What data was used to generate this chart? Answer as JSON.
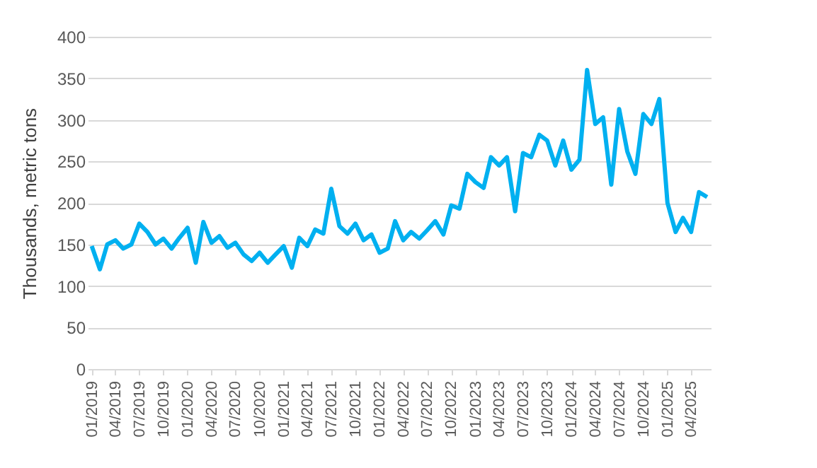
{
  "chart_data": {
    "type": "line",
    "ylabel": "Thousands, metric tons",
    "x": [
      "2019-01",
      "2019-02",
      "2019-03",
      "2019-04",
      "2019-05",
      "2019-06",
      "2019-07",
      "2019-08",
      "2019-09",
      "2019-10",
      "2019-11",
      "2019-12",
      "2020-01",
      "2020-02",
      "2020-03",
      "2020-04",
      "2020-05",
      "2020-06",
      "2020-07",
      "2020-08",
      "2020-09",
      "2020-10",
      "2020-11",
      "2020-12",
      "2021-01",
      "2021-02",
      "2021-03",
      "2021-04",
      "2021-05",
      "2021-06",
      "2021-07",
      "2021-08",
      "2021-09",
      "2021-10",
      "2021-11",
      "2021-12",
      "2022-01",
      "2022-02",
      "2022-03",
      "2022-04",
      "2022-05",
      "2022-06",
      "2022-07",
      "2022-08",
      "2022-09",
      "2022-10",
      "2022-11",
      "2022-12",
      "2023-01",
      "2023-02",
      "2023-03",
      "2023-04",
      "2023-05",
      "2023-06",
      "2023-07",
      "2023-08",
      "2023-09",
      "2023-10",
      "2023-11",
      "2023-12",
      "2024-01",
      "2024-02",
      "2024-03",
      "2024-04",
      "2024-05",
      "2024-06",
      "2024-07",
      "2024-08",
      "2024-09",
      "2024-10",
      "2024-11",
      "2024-12",
      "2025-01",
      "2025-02",
      "2025-03",
      "2025-04",
      "2025-05",
      "2025-06"
    ],
    "series": [
      {
        "color": "#00b0f0",
        "values": [
          148,
          120,
          150,
          155,
          145,
          150,
          175,
          165,
          150,
          157,
          145,
          158,
          170,
          128,
          177,
          152,
          160,
          146,
          152,
          138,
          130,
          140,
          128,
          138,
          148,
          122,
          158,
          148,
          168,
          163,
          217,
          172,
          163,
          175,
          155,
          162,
          140,
          145,
          178,
          155,
          165,
          157,
          167,
          178,
          162,
          197,
          193,
          235,
          225,
          218,
          255,
          245,
          255,
          190,
          260,
          255,
          282,
          275,
          245,
          275,
          240,
          252,
          360,
          295,
          303,
          222,
          313,
          262,
          235,
          307,
          295,
          325,
          200,
          165,
          182,
          165,
          213,
          207
        ]
      }
    ],
    "xlim": [
      "2018-12-17",
      "2025-06-15"
    ],
    "xticks": [
      {
        "value": "2019-01",
        "label": "01/2019"
      },
      {
        "value": "2019-04",
        "label": "04/2019"
      },
      {
        "value": "2019-07",
        "label": "07/2019"
      },
      {
        "value": "2019-10",
        "label": "10/2019"
      },
      {
        "value": "2020-01",
        "label": "01/2020"
      },
      {
        "value": "2020-04",
        "label": "04/2020"
      },
      {
        "value": "2020-07",
        "label": "07/2020"
      },
      {
        "value": "2020-10",
        "label": "10/2020"
      },
      {
        "value": "2021-01",
        "label": "01/2021"
      },
      {
        "value": "2021-04",
        "label": "04/2021"
      },
      {
        "value": "2021-07",
        "label": "07/2021"
      },
      {
        "value": "2021-10",
        "label": "10/2021"
      },
      {
        "value": "2022-01",
        "label": "01/2022"
      },
      {
        "value": "2022-04",
        "label": "04/2022"
      },
      {
        "value": "2022-07",
        "label": "07/2022"
      },
      {
        "value": "2022-10",
        "label": "10/2022"
      },
      {
        "value": "2023-01",
        "label": "01/2023"
      },
      {
        "value": "2023-04",
        "label": "04/2023"
      },
      {
        "value": "2023-07",
        "label": "07/2023"
      },
      {
        "value": "2023-10",
        "label": "10/2023"
      },
      {
        "value": "2024-01",
        "label": "01/2024"
      },
      {
        "value": "2024-04",
        "label": "04/2024"
      },
      {
        "value": "2024-07",
        "label": "07/2024"
      },
      {
        "value": "2024-10",
        "label": "10/2024"
      },
      {
        "value": "2025-01",
        "label": "01/2025"
      },
      {
        "value": "2025-04",
        "label": "04/2025"
      }
    ],
    "ylim": [
      0,
      400
    ],
    "yticks": [
      0,
      50,
      100,
      150,
      200,
      250,
      300,
      350,
      400
    ],
    "grid": "y",
    "legend": false,
    "marker": "none",
    "line_style": "solid"
  }
}
